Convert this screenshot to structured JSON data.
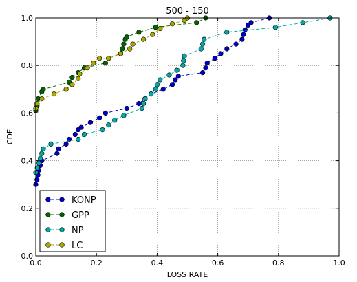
{
  "chart_data": {
    "type": "line",
    "title": "500 - 150",
    "xlabel": "LOSS RATE",
    "ylabel": "CDF",
    "xlim": [
      0,
      1
    ],
    "ylim": [
      0,
      1
    ],
    "xticks": [
      "0.0",
      "0.2",
      "0.4",
      "0.6",
      "0.8",
      "1.0"
    ],
    "yticks": [
      "0.0",
      "0.2",
      "0.4",
      "0.6",
      "0.8",
      "1.0"
    ],
    "grid": true,
    "legend_position": "lower-left",
    "series": [
      {
        "name": "KONP",
        "color": "#0000cc",
        "points": [
          [
            0.0,
            0.3
          ],
          [
            0.004,
            0.32
          ],
          [
            0.007,
            0.34
          ],
          [
            0.01,
            0.36
          ],
          [
            0.015,
            0.38
          ],
          [
            0.02,
            0.4
          ],
          [
            0.07,
            0.43
          ],
          [
            0.075,
            0.45
          ],
          [
            0.1,
            0.47
          ],
          [
            0.11,
            0.49
          ],
          [
            0.13,
            0.51
          ],
          [
            0.14,
            0.53
          ],
          [
            0.15,
            0.54
          ],
          [
            0.18,
            0.56
          ],
          [
            0.21,
            0.58
          ],
          [
            0.23,
            0.6
          ],
          [
            0.3,
            0.62
          ],
          [
            0.34,
            0.64
          ],
          [
            0.36,
            0.66
          ],
          [
            0.38,
            0.68
          ],
          [
            0.42,
            0.7
          ],
          [
            0.45,
            0.72
          ],
          [
            0.46,
            0.74
          ],
          [
            0.47,
            0.755
          ],
          [
            0.55,
            0.77
          ],
          [
            0.56,
            0.79
          ],
          [
            0.565,
            0.81
          ],
          [
            0.59,
            0.83
          ],
          [
            0.61,
            0.85
          ],
          [
            0.63,
            0.87
          ],
          [
            0.66,
            0.89
          ],
          [
            0.68,
            0.91
          ],
          [
            0.685,
            0.93
          ],
          [
            0.69,
            0.95
          ],
          [
            0.7,
            0.97
          ],
          [
            0.71,
            0.98
          ],
          [
            0.77,
            1.0
          ]
        ]
      },
      {
        "name": "GPP",
        "color": "#006600",
        "points": [
          [
            0.0,
            0.61
          ],
          [
            0.004,
            0.63
          ],
          [
            0.008,
            0.66
          ],
          [
            0.02,
            0.69
          ],
          [
            0.025,
            0.7
          ],
          [
            0.11,
            0.73
          ],
          [
            0.12,
            0.75
          ],
          [
            0.14,
            0.77
          ],
          [
            0.16,
            0.79
          ],
          [
            0.23,
            0.81
          ],
          [
            0.24,
            0.83
          ],
          [
            0.28,
            0.85
          ],
          [
            0.285,
            0.87
          ],
          [
            0.29,
            0.89
          ],
          [
            0.295,
            0.91
          ],
          [
            0.3,
            0.92
          ],
          [
            0.34,
            0.94
          ],
          [
            0.395,
            0.96
          ],
          [
            0.53,
            0.98
          ],
          [
            0.56,
            1.0
          ]
        ]
      },
      {
        "name": "NP",
        "color": "#00aaaa",
        "points": [
          [
            0.0,
            0.35
          ],
          [
            0.005,
            0.37
          ],
          [
            0.01,
            0.39
          ],
          [
            0.015,
            0.41
          ],
          [
            0.02,
            0.43
          ],
          [
            0.025,
            0.45
          ],
          [
            0.05,
            0.47
          ],
          [
            0.14,
            0.49
          ],
          [
            0.16,
            0.51
          ],
          [
            0.22,
            0.53
          ],
          [
            0.24,
            0.55
          ],
          [
            0.26,
            0.57
          ],
          [
            0.29,
            0.59
          ],
          [
            0.35,
            0.62
          ],
          [
            0.355,
            0.64
          ],
          [
            0.36,
            0.66
          ],
          [
            0.38,
            0.68
          ],
          [
            0.395,
            0.7
          ],
          [
            0.4,
            0.72
          ],
          [
            0.41,
            0.74
          ],
          [
            0.44,
            0.76
          ],
          [
            0.465,
            0.78
          ],
          [
            0.485,
            0.8
          ],
          [
            0.487,
            0.82
          ],
          [
            0.49,
            0.84
          ],
          [
            0.545,
            0.87
          ],
          [
            0.55,
            0.89
          ],
          [
            0.555,
            0.91
          ],
          [
            0.63,
            0.94
          ],
          [
            0.79,
            0.96
          ],
          [
            0.88,
            0.98
          ],
          [
            0.97,
            1.0
          ]
        ]
      },
      {
        "name": "LC",
        "color": "#aaaa00",
        "points": [
          [
            0.0,
            0.62
          ],
          [
            0.004,
            0.64
          ],
          [
            0.02,
            0.66
          ],
          [
            0.06,
            0.68
          ],
          [
            0.1,
            0.7
          ],
          [
            0.12,
            0.72
          ],
          [
            0.14,
            0.745
          ],
          [
            0.145,
            0.765
          ],
          [
            0.17,
            0.79
          ],
          [
            0.19,
            0.81
          ],
          [
            0.21,
            0.83
          ],
          [
            0.24,
            0.83
          ],
          [
            0.28,
            0.85
          ],
          [
            0.31,
            0.87
          ],
          [
            0.32,
            0.89
          ],
          [
            0.355,
            0.91
          ],
          [
            0.385,
            0.93
          ],
          [
            0.41,
            0.955
          ],
          [
            0.45,
            0.975
          ],
          [
            0.49,
            0.99
          ],
          [
            0.5,
            1.0
          ]
        ]
      }
    ]
  }
}
